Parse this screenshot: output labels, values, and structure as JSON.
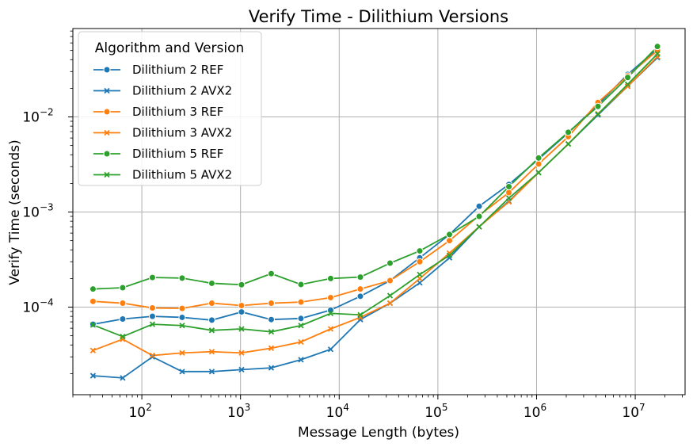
{
  "chart_data": {
    "type": "line",
    "title": "Verify Time - Dilithium Versions",
    "xlabel": "Message Length (bytes)",
    "ylabel": "Verify Time (seconds)",
    "xscale": "log",
    "yscale": "log",
    "xlim": [
      20,
      32000000
    ],
    "ylim": [
      1.2e-05,
      0.085
    ],
    "grid": true,
    "legend": {
      "title": "Algorithm and Version",
      "placement": "top-left"
    },
    "x_ticks": [
      {
        "base": "10",
        "exp": "2",
        "value": 100
      },
      {
        "base": "10",
        "exp": "3",
        "value": 1000
      },
      {
        "base": "10",
        "exp": "4",
        "value": 10000
      },
      {
        "base": "10",
        "exp": "5",
        "value": 100000
      },
      {
        "base": "10",
        "exp": "6",
        "value": 1000000
      },
      {
        "base": "10",
        "exp": "7",
        "value": 10000000
      }
    ],
    "y_ticks": [
      {
        "base": "10",
        "exp": "−4",
        "value": 0.0001
      },
      {
        "base": "10",
        "exp": "−3",
        "value": 0.001
      },
      {
        "base": "10",
        "exp": "−2",
        "value": 0.01
      }
    ],
    "x": [
      32,
      64,
      128,
      256,
      512,
      1024,
      2048,
      4096,
      8192,
      16384,
      32768,
      65536,
      131072,
      262144,
      524288,
      1048576,
      2097152,
      4194304,
      8388608,
      16777216
    ],
    "series": [
      {
        "name": "Dilithium 2 REF",
        "color": "#1f77b4",
        "marker": "circle",
        "values": [
          6.6e-05,
          7.5e-05,
          8e-05,
          7.8e-05,
          7.3e-05,
          8.9e-05,
          7.4e-05,
          7.6e-05,
          9.3e-05,
          0.00013,
          0.00019,
          0.00033,
          0.00058,
          0.00115,
          0.00195,
          0.0036,
          0.0068,
          0.0135,
          0.028,
          0.052
        ]
      },
      {
        "name": "Dilithium 2 AVX2",
        "color": "#1f77b4",
        "marker": "x",
        "values": [
          1.9e-05,
          1.8e-05,
          3e-05,
          2.1e-05,
          2.1e-05,
          2.2e-05,
          2.3e-05,
          2.8e-05,
          3.6e-05,
          7.4e-05,
          0.00011,
          0.00018,
          0.00033,
          0.0007,
          0.0013,
          0.0026,
          0.0052,
          0.0105,
          0.021,
          0.042
        ]
      },
      {
        "name": "Dilithium 3 REF",
        "color": "#ff7f0e",
        "marker": "circle",
        "values": [
          0.000115,
          0.00011,
          9.8e-05,
          9.7e-05,
          0.00011,
          0.000104,
          0.00011,
          0.000113,
          0.000126,
          0.000155,
          0.00019,
          0.0003,
          0.0005,
          0.00092,
          0.0016,
          0.0032,
          0.0062,
          0.0142,
          0.027,
          0.05
        ]
      },
      {
        "name": "Dilithium 3 AVX2",
        "color": "#ff7f0e",
        "marker": "x",
        "values": [
          3.5e-05,
          4.6e-05,
          3.1e-05,
          3.3e-05,
          3.4e-05,
          3.3e-05,
          3.7e-05,
          4.3e-05,
          5.9e-05,
          7.8e-05,
          0.00011,
          0.0002,
          0.00037,
          0.0007,
          0.00128,
          0.0026,
          0.0052,
          0.0108,
          0.021,
          0.043
        ]
      },
      {
        "name": "Dilithium 5 REF",
        "color": "#2ca02c",
        "marker": "circle",
        "values": [
          0.000155,
          0.00016,
          0.000205,
          0.000202,
          0.000178,
          0.000172,
          0.000225,
          0.000173,
          0.0002,
          0.000207,
          0.00029,
          0.00039,
          0.00058,
          0.0009,
          0.00185,
          0.0037,
          0.0069,
          0.0129,
          0.026,
          0.055
        ]
      },
      {
        "name": "Dilithium 5 AVX2",
        "color": "#2ca02c",
        "marker": "x",
        "values": [
          6.5e-05,
          4.9e-05,
          6.6e-05,
          6.4e-05,
          5.7e-05,
          5.9e-05,
          5.5e-05,
          6.4e-05,
          8.6e-05,
          8.3e-05,
          0.000132,
          0.00022,
          0.00035,
          0.0007,
          0.0014,
          0.0026,
          0.0052,
          0.0107,
          0.022,
          0.046
        ]
      }
    ]
  }
}
